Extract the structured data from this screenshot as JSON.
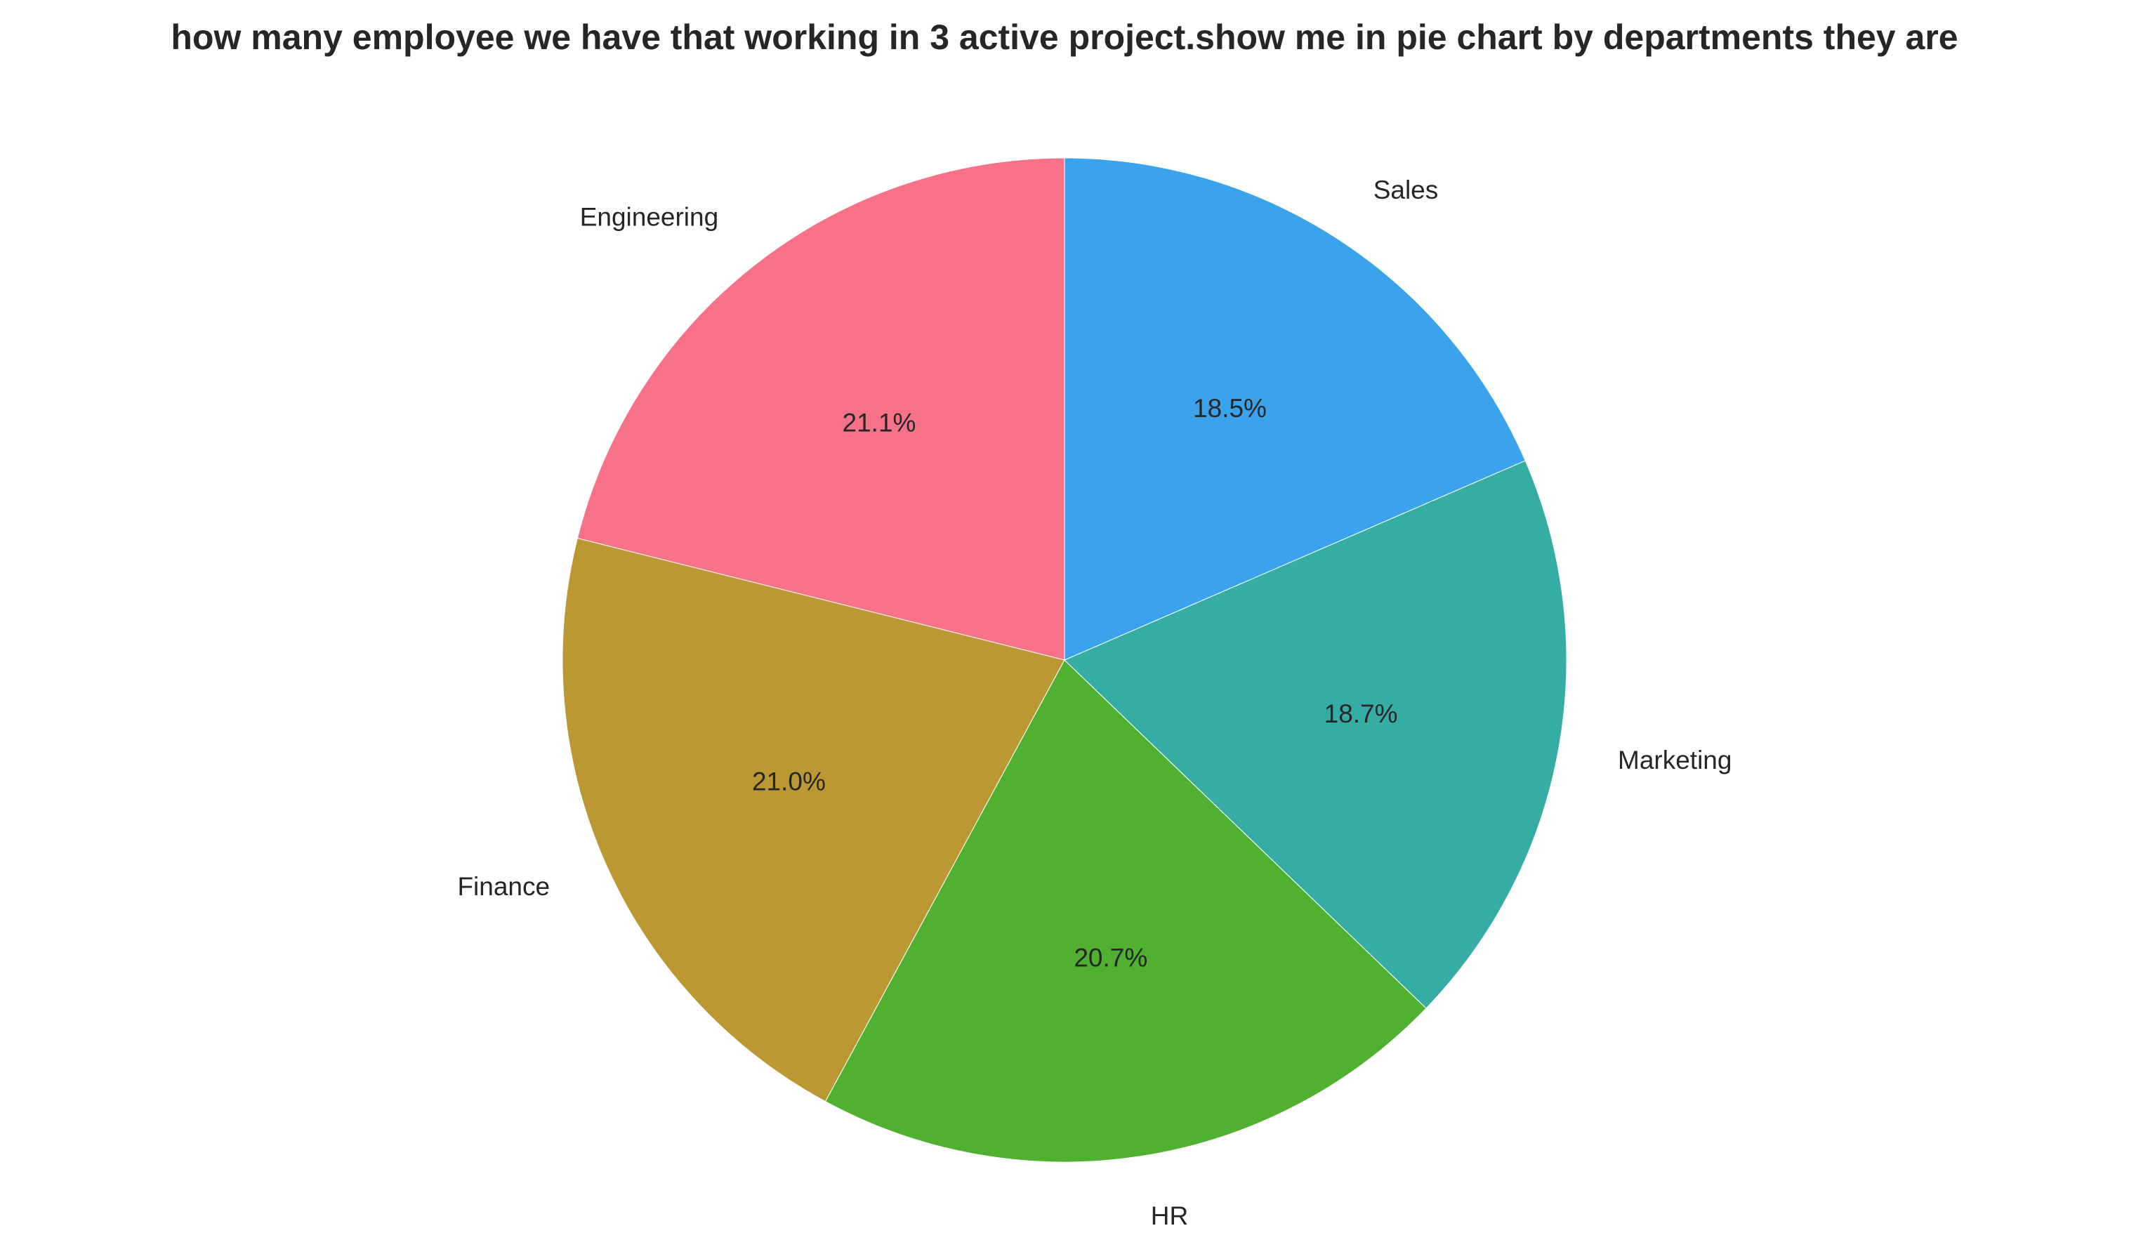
{
  "chart_data": {
    "type": "pie",
    "title": "how many employee we have that working in 3 active project.show me in pie chart by departments they are",
    "start_angle_deg": 90,
    "direction": "counterclockwise",
    "slices": [
      {
        "label": "Engineering",
        "value": 21.1,
        "pct_label": "21.1%",
        "color": "#f77189"
      },
      {
        "label": "Finance",
        "value": 21.0,
        "pct_label": "21.0%",
        "color": "#bb9832"
      },
      {
        "label": "HR",
        "value": 20.7,
        "pct_label": "20.7%",
        "color": "#50b131"
      },
      {
        "label": "Marketing",
        "value": 18.7,
        "pct_label": "18.7%",
        "color": "#36ada4"
      },
      {
        "label": "Sales",
        "value": 18.5,
        "pct_label": "18.5%",
        "color": "#3ba3ec"
      }
    ]
  }
}
